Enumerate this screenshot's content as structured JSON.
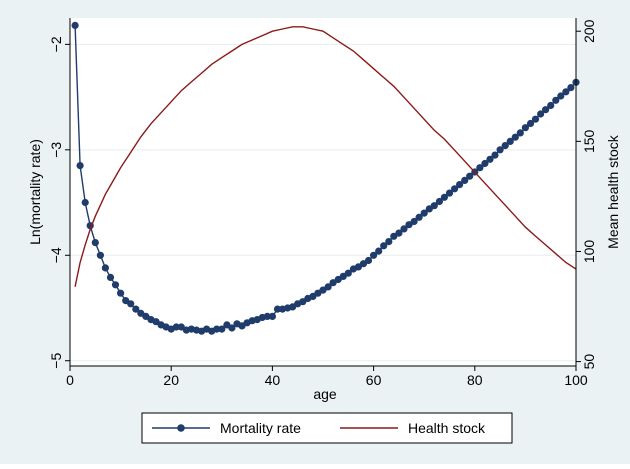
{
  "chart_data": {
    "type": "line",
    "title": "",
    "xlabel": "age",
    "ylabel_left": "Ln(mortality rate)",
    "ylabel_right": "Mean health stock",
    "xlim": [
      0,
      100
    ],
    "ylim_left": [
      -5.05,
      -1.75
    ],
    "ylim_right": [
      48,
      206
    ],
    "x_ticks": [
      0,
      20,
      40,
      60,
      80,
      100
    ],
    "y_left_ticks": [
      -5,
      -4,
      -3,
      -2
    ],
    "y_left_tick_labels": [
      "−5",
      "−4",
      "−3",
      "−2"
    ],
    "y_right_ticks": [
      50,
      100,
      150,
      200
    ],
    "grid": "horizontal",
    "legend_placement": "bottom",
    "series": [
      {
        "name": "Mortality rate",
        "axis": "left",
        "style": "line-markers",
        "color": "#1f3c6b",
        "x": [
          1,
          2,
          3,
          4,
          5,
          6,
          7,
          8,
          9,
          10,
          11,
          12,
          13,
          14,
          15,
          16,
          17,
          18,
          19,
          20,
          21,
          22,
          23,
          24,
          25,
          26,
          27,
          28,
          29,
          30,
          31,
          32,
          33,
          34,
          35,
          36,
          37,
          38,
          39,
          40,
          41,
          42,
          43,
          44,
          45,
          46,
          47,
          48,
          49,
          50,
          51,
          52,
          53,
          54,
          55,
          56,
          57,
          58,
          59,
          60,
          61,
          62,
          63,
          64,
          65,
          66,
          67,
          68,
          69,
          70,
          71,
          72,
          73,
          74,
          75,
          76,
          77,
          78,
          79,
          80,
          81,
          82,
          83,
          84,
          85,
          86,
          87,
          88,
          89,
          90,
          91,
          92,
          93,
          94,
          95,
          96,
          97,
          98,
          99,
          100
        ],
        "y": [
          -1.82,
          -3.15,
          -3.5,
          -3.72,
          -3.88,
          -4.0,
          -4.12,
          -4.21,
          -4.28,
          -4.36,
          -4.43,
          -4.46,
          -4.51,
          -4.55,
          -4.58,
          -4.61,
          -4.63,
          -4.66,
          -4.68,
          -4.7,
          -4.68,
          -4.68,
          -4.71,
          -4.7,
          -4.71,
          -4.72,
          -4.7,
          -4.72,
          -4.7,
          -4.7,
          -4.66,
          -4.69,
          -4.65,
          -4.67,
          -4.64,
          -4.62,
          -4.61,
          -4.59,
          -4.58,
          -4.58,
          -4.51,
          -4.51,
          -4.5,
          -4.49,
          -4.46,
          -4.44,
          -4.41,
          -4.39,
          -4.36,
          -4.33,
          -4.3,
          -4.26,
          -4.23,
          -4.2,
          -4.17,
          -4.13,
          -4.11,
          -4.08,
          -4.05,
          -4.0,
          -3.96,
          -3.91,
          -3.87,
          -3.82,
          -3.79,
          -3.75,
          -3.71,
          -3.68,
          -3.64,
          -3.6,
          -3.56,
          -3.53,
          -3.49,
          -3.45,
          -3.41,
          -3.37,
          -3.33,
          -3.29,
          -3.25,
          -3.21,
          -3.17,
          -3.13,
          -3.09,
          -3.05,
          -3.0,
          -2.96,
          -2.92,
          -2.88,
          -2.84,
          -2.79,
          -2.75,
          -2.71,
          -2.66,
          -2.62,
          -2.58,
          -2.53,
          -2.49,
          -2.45,
          -2.41,
          -2.36
        ]
      },
      {
        "name": "Health stock",
        "axis": "right",
        "style": "line",
        "color": "#8b1a1a",
        "x": [
          1,
          2,
          3,
          4,
          5,
          6,
          7,
          8,
          10,
          12,
          14,
          16,
          18,
          20,
          22,
          24,
          26,
          28,
          30,
          32,
          34,
          36,
          38,
          40,
          42,
          44,
          46,
          48,
          50,
          52,
          54,
          56,
          58,
          60,
          62,
          64,
          66,
          68,
          70,
          72,
          74,
          76,
          78,
          80,
          82,
          84,
          86,
          88,
          90,
          92,
          94,
          96,
          98,
          100
        ],
        "y": [
          84,
          95,
          103,
          110,
          116,
          121,
          126,
          130,
          138,
          145,
          152,
          158,
          163,
          168,
          173,
          177,
          181,
          185,
          188,
          191,
          194,
          196,
          198,
          200,
          201,
          202,
          202,
          201,
          200,
          197,
          194,
          191,
          187,
          183,
          179,
          175,
          170,
          165,
          160,
          155,
          151,
          146,
          141,
          136,
          131,
          126,
          121,
          116,
          111,
          107,
          103,
          99,
          95,
          92
        ]
      }
    ]
  }
}
